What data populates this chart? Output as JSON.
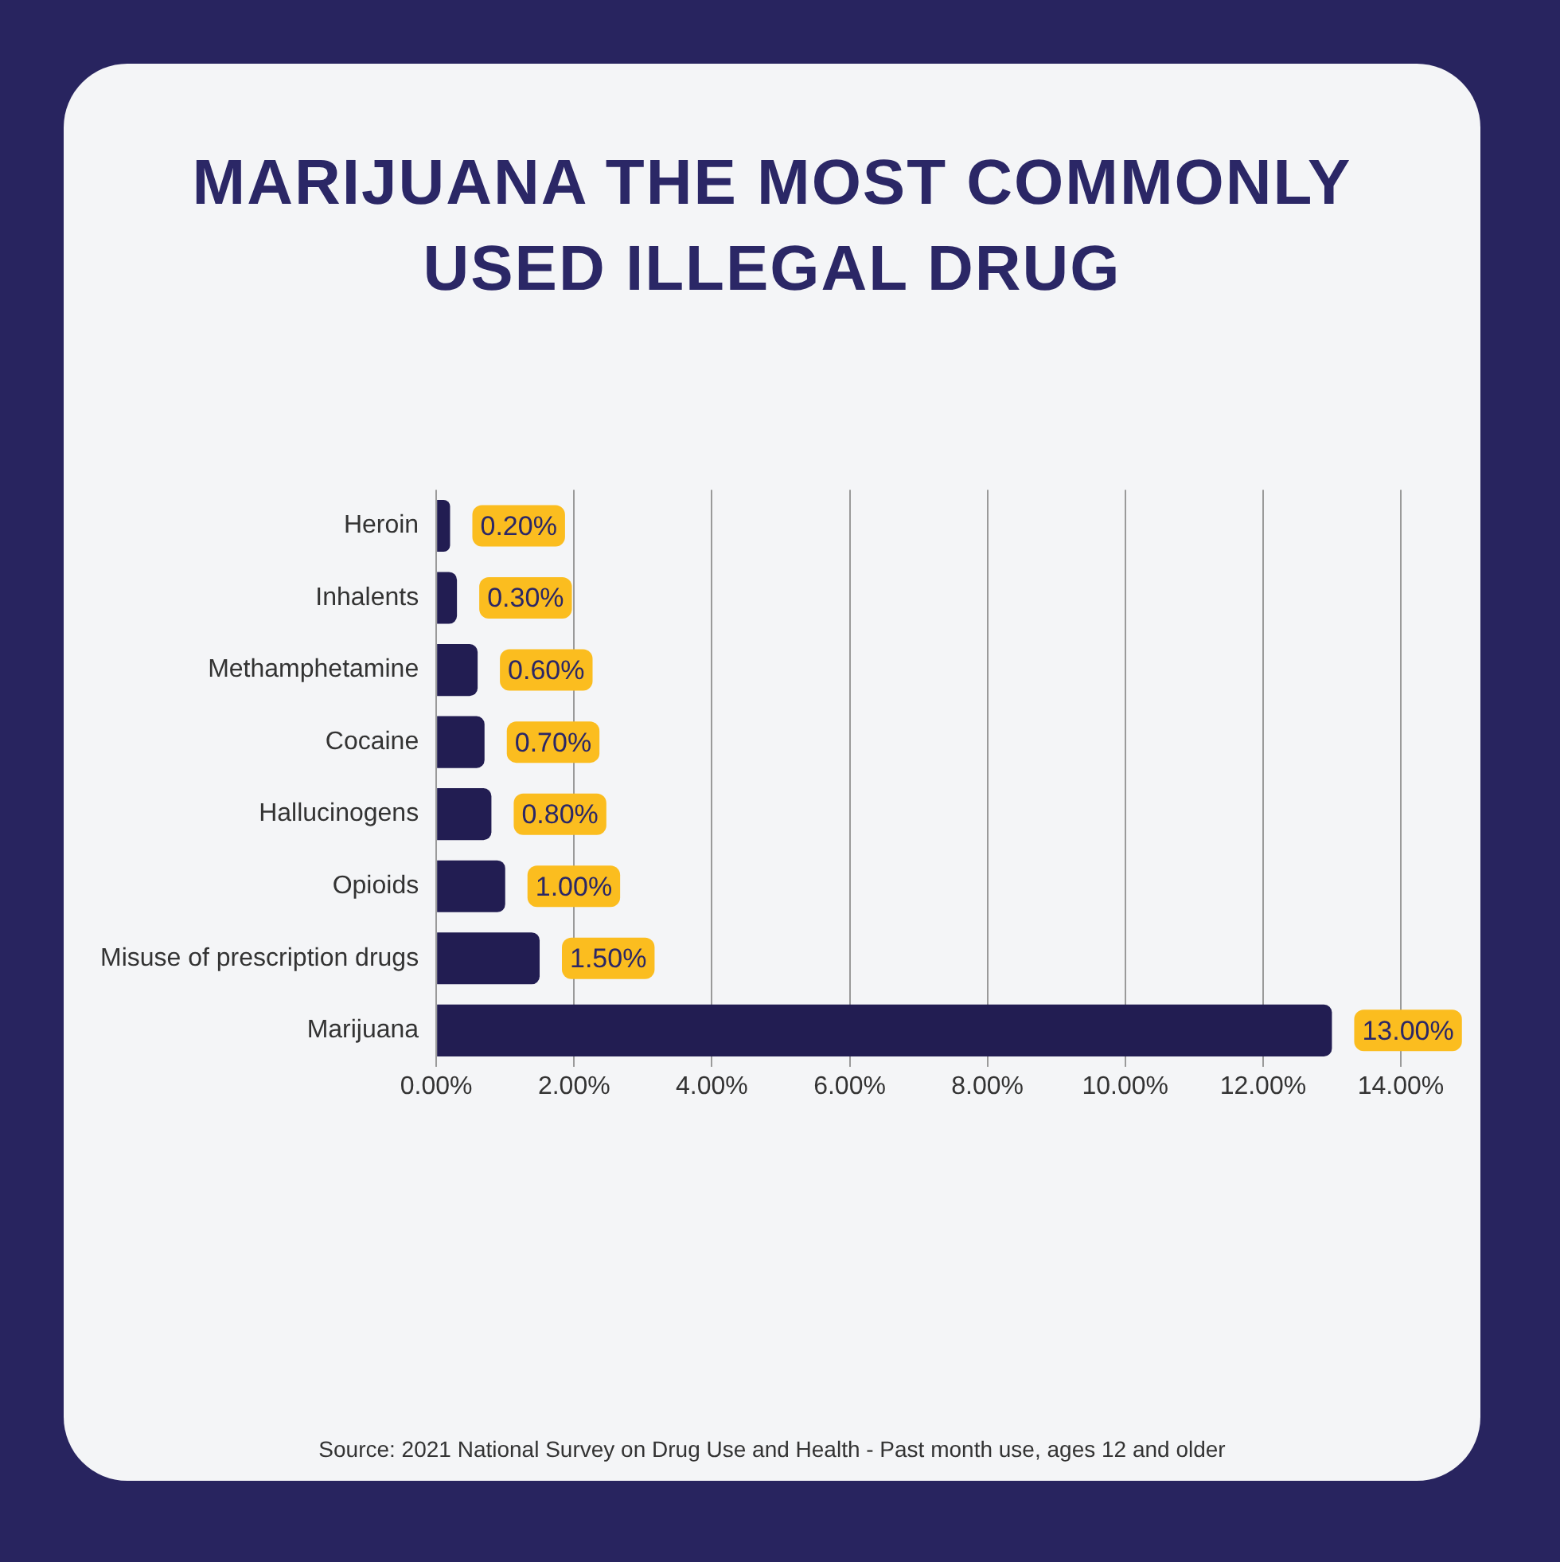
{
  "chart_data": {
    "type": "bar",
    "orientation": "horizontal",
    "title": "MARIJUANA THE MOST COMMONLY USED ILLEGAL DRUG",
    "categories": [
      "Heroin",
      "Inhalents",
      "Methamphetamine",
      "Cocaine",
      "Hallucinogens",
      "Opioids",
      "Misuse of prescription drugs",
      "Marijuana"
    ],
    "values": [
      0.2,
      0.3,
      0.6,
      0.7,
      0.8,
      1.0,
      1.5,
      13.0
    ],
    "value_labels": [
      "0.20%",
      "0.30%",
      "0.60%",
      "0.70%",
      "0.80%",
      "1.00%",
      "1.50%",
      "13.00%"
    ],
    "color": "#221d52",
    "xlim": [
      0,
      14
    ],
    "xticks": [
      {
        "value": 0,
        "label": "0.00%"
      },
      {
        "value": 2,
        "label": "2.00%"
      },
      {
        "value": 4,
        "label": "4.00%"
      },
      {
        "value": 6,
        "label": "6.00%"
      },
      {
        "value": 8,
        "label": "8.00%"
      },
      {
        "value": 10,
        "label": "10.00%"
      },
      {
        "value": 12,
        "label": "12.00%"
      },
      {
        "value": 14,
        "label": "14.00%"
      }
    ],
    "grid": "x",
    "legend": false,
    "annotations": [
      "Source: 2021 National Survey on Drug Use and Health - Past month use, ages 12 and older"
    ]
  }
}
